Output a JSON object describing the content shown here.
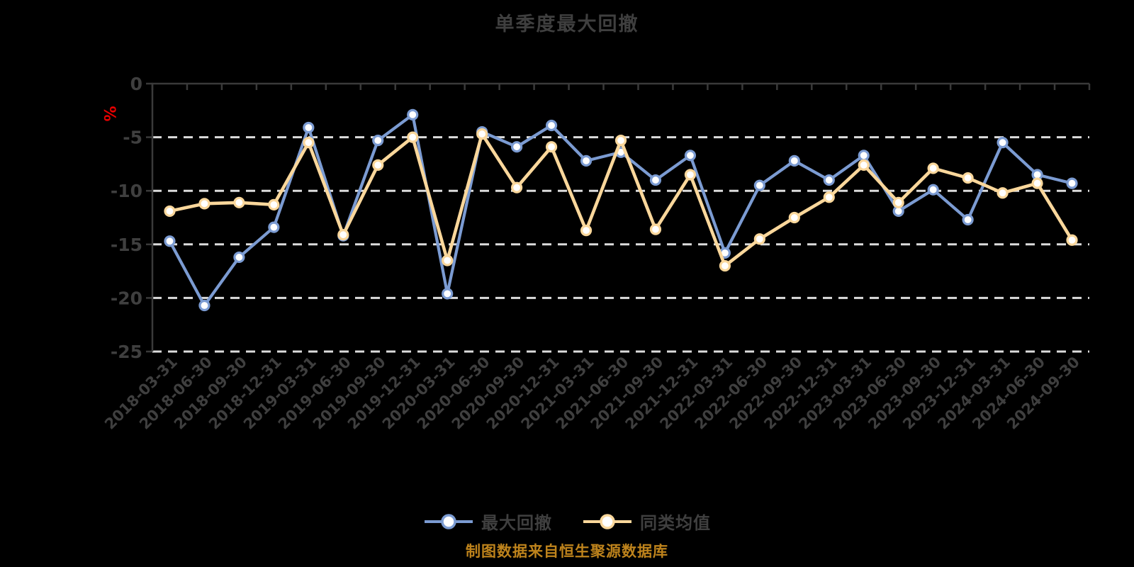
{
  "title": "单季度最大回撤",
  "y_axis": {
    "unit_label": "%",
    "unit_color": "#E60000",
    "tick_labels": [
      "0",
      "-5",
      "-10",
      "-15",
      "-20",
      "-25"
    ]
  },
  "footer": {
    "source": "制图数据来自恒生聚源数据库"
  },
  "colors": {
    "background": "#000000",
    "text": "#3F3F3F",
    "axis": "#3A3A3A",
    "gridline": "#DCDCDC",
    "series_blue": "#7B9BD2",
    "series_yellow": "#FAD79B",
    "marker_fill": "#FFFFFF",
    "source_text": "#BE831C"
  },
  "chart_data": {
    "type": "line",
    "title": "单季度最大回撤",
    "xlabel": "",
    "ylabel": "%",
    "ylim": [
      -25,
      0
    ],
    "yticks": [
      0,
      -5,
      -10,
      -15,
      -20,
      -25
    ],
    "grid": "horizontal dashed at -5,-10,-15,-20,-25",
    "legend_position": "bottom",
    "categories": [
      "2018-03-31",
      "2018-06-30",
      "2018-09-30",
      "2018-12-31",
      "2019-03-31",
      "2019-06-30",
      "2019-09-30",
      "2019-12-31",
      "2020-03-31",
      "2020-06-30",
      "2020-09-30",
      "2020-12-31",
      "2021-03-31",
      "2021-06-30",
      "2021-09-30",
      "2021-12-31",
      "2022-03-31",
      "2022-06-30",
      "2022-09-30",
      "2022-12-31",
      "2023-03-31",
      "2023-06-30",
      "2023-09-30",
      "2023-12-31",
      "2024-03-31",
      "2024-06-30",
      "2024-09-30"
    ],
    "series": [
      {
        "name": "最大回撤",
        "color": "#7B9BD2",
        "marker_fill": "#FFFFFF",
        "values": [
          -14.7,
          -20.7,
          -16.2,
          -13.4,
          -4.1,
          -14.2,
          -5.3,
          -2.9,
          -19.6,
          -4.5,
          -5.9,
          -3.9,
          -7.2,
          -6.4,
          -9.0,
          -6.7,
          -15.8,
          -9.5,
          -7.2,
          -9.0,
          -6.7,
          -11.9,
          -9.9,
          -12.7,
          -5.5,
          -8.5,
          -9.3
        ]
      },
      {
        "name": "同类均值",
        "color": "#FAD79B",
        "marker_fill": "#FFFFFF",
        "values": [
          -11.9,
          -11.2,
          -11.1,
          -11.3,
          -5.5,
          -14.1,
          -7.6,
          -5.0,
          -16.5,
          -4.7,
          -9.7,
          -5.9,
          -13.7,
          -5.3,
          -13.6,
          -8.5,
          -17.0,
          -14.5,
          -12.5,
          -10.6,
          -7.6,
          -11.1,
          -7.9,
          -8.8,
          -10.2,
          -9.3,
          -14.6
        ]
      }
    ]
  }
}
